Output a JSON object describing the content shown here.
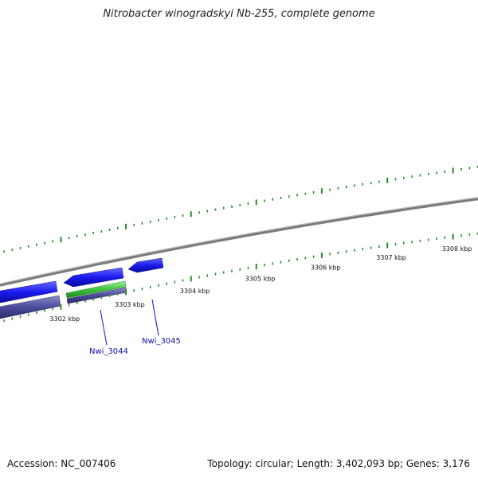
{
  "title": "Nitrobacter winogradskyi Nb-255, complete genome",
  "accession_text": "Accession: NC_007406",
  "summary_text": "Topology: circular; Length: 3,402,093 bp; Genes: 3,176",
  "scale": {
    "tick_labels": [
      "3302 kbp",
      "3303 kbp",
      "3304 kbp",
      "3305 kbp",
      "3306 kbp",
      "3307 kbp",
      "3308 kbp"
    ]
  },
  "genes": [
    {
      "name": "Nwi_3044"
    },
    {
      "name": "Nwi_3045"
    }
  ],
  "colors": {
    "backbone": "#8a8a8a",
    "gene_forward": "#1a1aee",
    "gene_reverse": "#4a4a9a",
    "rna": "#3cc43c",
    "tick": "#2a8a2a",
    "gene_label": "#1010aa"
  }
}
